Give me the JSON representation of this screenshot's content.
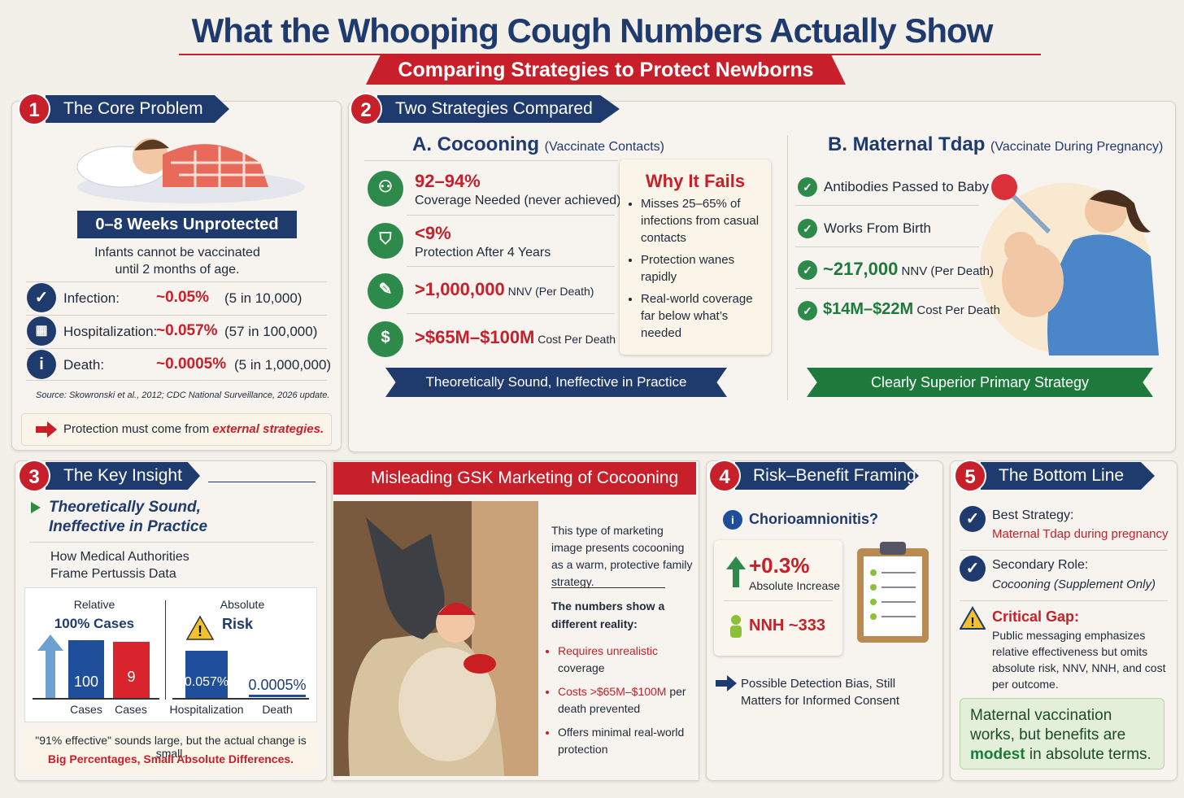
{
  "header": {
    "title": "What the Whooping Cough Numbers Actually Show",
    "subtitle": "Comparing Strategies to Protect Newborns"
  },
  "core": {
    "number": "1",
    "title": "The Core Problem",
    "banner": "0–8 Weeks Unprotected",
    "note": "Infants cannot be vaccinated until 2 months of age.",
    "rows": [
      {
        "label": "Infection:",
        "value": "~0.05%",
        "detail": "(5 in 10,000)"
      },
      {
        "label": "Hospitalization:",
        "value": "~0.057%",
        "detail": "(57 in 100,000)"
      },
      {
        "label": "Death:",
        "value": "~0.0005%",
        "detail": "(5 in 1,000,000)"
      }
    ],
    "source": "Source: Skowronski et al., 2012; CDC National Surveillance, 2026 update.",
    "callout": {
      "text": "Protection must come from ",
      "emphasis": "external strategies."
    }
  },
  "strategies": {
    "number": "2",
    "title": "Two Strategies Compared",
    "a": {
      "name": "A. Cocooning",
      "sub": "(Vaccinate Contacts)",
      "items": [
        {
          "value": "92–94%",
          "text": "Coverage Needed (never achieved)"
        },
        {
          "value": "<9%",
          "text": "Protection After 4 Years"
        },
        {
          "value": ">1,000,000",
          "text": "NNV (Per Death)"
        },
        {
          "value": ">$65M–$100M",
          "text": "Cost Per Death"
        }
      ],
      "why": {
        "title": "Why It Fails",
        "points": [
          "Misses 25–65% of infections from casual contacts",
          "Protection wanes rapidly",
          "Real-world coverage far below what’s needed"
        ]
      },
      "verdict": "Theoretically Sound, Ineffective in Practice"
    },
    "b": {
      "name": "B. Maternal Tdap",
      "sub": "(Vaccinate During Pregnancy)",
      "items": [
        {
          "text": "Antibodies Passed to Baby"
        },
        {
          "text": "Works From Birth"
        },
        {
          "value": "~217,000",
          "text": "NNV (Per Death)"
        },
        {
          "value": "$14M–$22M",
          "text": "Cost Per Death"
        }
      ],
      "verdict": "Clearly Superior Primary Strategy"
    }
  },
  "insight": {
    "number": "3",
    "title": "The Key Insight",
    "heading": "Theoretically Sound, Ineffective in Practice",
    "subheading": "How Medical Authorities Frame Pertussis Data",
    "relative": {
      "label": "Relative",
      "caption": "100% Cases",
      "bars": [
        {
          "value": "100",
          "label": "Cases"
        },
        {
          "value": "9",
          "label": "Cases"
        }
      ]
    },
    "absolute": {
      "label": "Absolute",
      "caption": "Risk",
      "bars": [
        {
          "value": "0.057%",
          "label": "Hospitalization"
        },
        {
          "value": "0.0005%",
          "label": "Death"
        }
      ]
    },
    "quote": "\"91% effective\" sounds large, but the actual change is small.",
    "tagline": "Big Percentages, Small Absolute Differences."
  },
  "marketing": {
    "title": "Misleading GSK Marketing of Cocooning",
    "intro": "This type of marketing image presents cocooning as a warm, protective family strategy.",
    "lead": "The numbers show a different reality:",
    "points": [
      {
        "emphasis": "Requires unrealistic",
        "rest": " coverage"
      },
      {
        "emphasis": "Costs >$65M–$100M",
        "rest": " per death prevented"
      },
      {
        "emphasis": "Offers minimal real-world protection",
        "rest": ""
      }
    ]
  },
  "risk": {
    "number": "4",
    "title": "Risk–Benefit Framing",
    "question": "Chorioamnionitis?",
    "increase": "+0.3%",
    "increase_label": "Absolute Increase",
    "nnh": "NNH ~333",
    "note": "Possible Detection Bias, Still Matters for Informed Consent"
  },
  "bottom": {
    "number": "5",
    "title": "The Bottom Line",
    "items": [
      {
        "label": "Best Strategy:",
        "text": "Maternal Tdap during pregnancy"
      },
      {
        "label": "Secondary Role:",
        "text": "Cocooning (Supplement Only)"
      },
      {
        "label": "Critical Gap:",
        "text": "Public messaging emphasizes relative effectiveness but omits absolute risk, NNV, NNH, and cost per outcome."
      }
    ],
    "conclusion": {
      "before": "Maternal vaccination works, but benefits are ",
      "emphasis": "modest",
      "after": " in absolute terms."
    }
  }
}
